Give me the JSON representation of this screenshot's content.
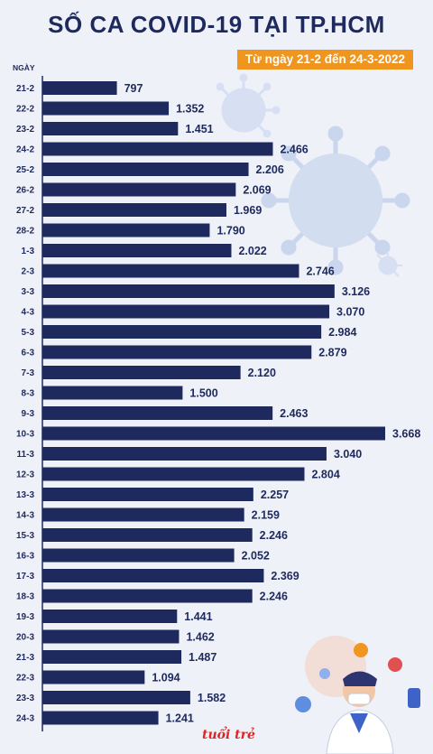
{
  "title": "SỐ CA COVID-19 TẠI TP.HCM",
  "subtitle": "Từ ngày 21-2 đến 24-3-2022",
  "logo": "tuổi trẻ",
  "colors": {
    "bar": "#1e2a5e",
    "accent": "#f0951e",
    "background": "#eef1f7",
    "virus": "#c9d6ee"
  },
  "chart_data": {
    "type": "bar",
    "orientation": "horizontal",
    "xlabel": "",
    "ylabel": "NGÀY",
    "xlim": [
      0,
      3668
    ],
    "grid": false,
    "categories": [
      "21-2",
      "22-2",
      "23-2",
      "24-2",
      "25-2",
      "26-2",
      "27-2",
      "28-2",
      "1-3",
      "2-3",
      "3-3",
      "4-3",
      "5-3",
      "6-3",
      "7-3",
      "8-3",
      "9-3",
      "10-3",
      "11-3",
      "12-3",
      "13-3",
      "14-3",
      "15-3",
      "16-3",
      "17-3",
      "18-3",
      "19-3",
      "20-3",
      "21-3",
      "22-3",
      "23-3",
      "24-3"
    ],
    "values": [
      797,
      1352,
      1451,
      2466,
      2206,
      2069,
      1969,
      1790,
      2022,
      2746,
      3126,
      3070,
      2984,
      2879,
      2120,
      1500,
      2463,
      3668,
      3040,
      2804,
      2257,
      2159,
      2246,
      2052,
      2369,
      2246,
      1441,
      1462,
      1487,
      1094,
      1582,
      1241
    ],
    "value_labels": [
      "797",
      "1.352",
      "1.451",
      "2.466",
      "2.206",
      "2.069",
      "1.969",
      "1.790",
      "2.022",
      "2.746",
      "3.126",
      "3.070",
      "2.984",
      "2.879",
      "2.120",
      "1.500",
      "2.463",
      "3.668",
      "3.040",
      "2.804",
      "2.257",
      "2.159",
      "2.246",
      "2.052",
      "2.369",
      "2.246",
      "1.441",
      "1.462",
      "1.487",
      "1.094",
      "1.582",
      "1.241"
    ]
  }
}
